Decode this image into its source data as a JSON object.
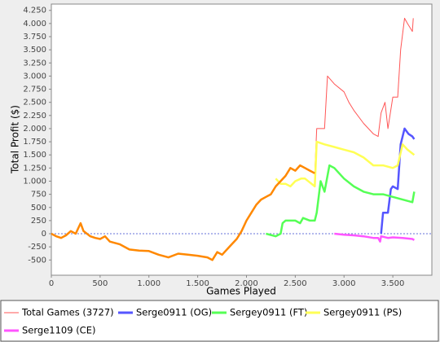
{
  "chart_data": {
    "type": "line",
    "x_label": "Games Played",
    "y_label": "Total Profit ($)",
    "xlim": [
      0,
      3900
    ],
    "ylim": [
      -790,
      4370
    ],
    "xticks": [
      0,
      500,
      {
        "value": 1000,
        "label": "1.000"
      },
      {
        "value": 1500,
        "label": "1.500"
      },
      {
        "value": 2000,
        "label": "2.000"
      },
      {
        "value": 2500,
        "label": "2.500"
      },
      {
        "value": 3000,
        "label": "3.000"
      },
      {
        "value": 3500,
        "label": "3.500"
      }
    ],
    "yticks": [
      -500,
      -250,
      0,
      250,
      500,
      750,
      {
        "value": 1000,
        "label": "1.000"
      },
      {
        "value": 1250,
        "label": "1.250"
      },
      {
        "value": 1500,
        "label": "1.500"
      },
      {
        "value": 1750,
        "label": "1.750"
      },
      {
        "value": 2000,
        "label": "2.000"
      },
      {
        "value": 2250,
        "label": "2.250"
      },
      {
        "value": 2500,
        "label": "2.500"
      },
      {
        "value": 2750,
        "label": "2.750"
      },
      {
        "value": 3000,
        "label": "3.000"
      },
      {
        "value": 3250,
        "label": "3.250"
      },
      {
        "value": 3500,
        "label": "3.500"
      },
      {
        "value": 3750,
        "label": "3.750"
      },
      {
        "value": 4000,
        "label": "4.000"
      },
      {
        "value": 4250,
        "label": "4.250"
      }
    ],
    "grid": false,
    "series": [
      {
        "name": "Total Games (3727)",
        "color": "#ff5555",
        "x": [
          0,
          50,
          100,
          150,
          200,
          250,
          300,
          330,
          400,
          450,
          500,
          550,
          600,
          700,
          800,
          900,
          1000,
          1100,
          1200,
          1300,
          1400,
          1500,
          1600,
          1650,
          1700,
          1750,
          1800,
          1850,
          1900,
          1950,
          2000,
          2050,
          2100,
          2150,
          2200,
          2250,
          2300,
          2350,
          2400,
          2450,
          2500,
          2550,
          2600,
          2650,
          2700,
          2720,
          2750,
          2800,
          2830,
          2900,
          3000,
          3050,
          3100,
          3200,
          3300,
          3350,
          3380,
          3420,
          3450,
          3500,
          3550,
          3580,
          3620,
          3650,
          3700,
          3710
        ],
        "values": [
          0,
          -50,
          -80,
          -30,
          50,
          0,
          200,
          50,
          -50,
          -80,
          -100,
          -50,
          -150,
          -200,
          -300,
          -320,
          -330,
          -400,
          -450,
          -380,
          -400,
          -420,
          -450,
          -500,
          -350,
          -400,
          -300,
          -200,
          -100,
          50,
          250,
          400,
          550,
          650,
          700,
          750,
          900,
          1000,
          1100,
          1250,
          1200,
          1300,
          1250,
          1200,
          1150,
          2000,
          2000,
          2000,
          3000,
          2850,
          2700,
          2500,
          2350,
          2100,
          1900,
          1850,
          2300,
          2500,
          2000,
          2600,
          2600,
          3500,
          4100,
          4000,
          3850,
          4100
        ]
      },
      {
        "name": "Serge0911 (OG)",
        "color": "#5555ff",
        "x": [
          3380,
          3400,
          3450,
          3480,
          3500,
          3550,
          3580,
          3620,
          3660,
          3700,
          3720
        ],
        "values": [
          0,
          400,
          400,
          850,
          900,
          850,
          1700,
          2000,
          1900,
          1850,
          1800
        ]
      },
      {
        "name": "Sergey0911 (FT)",
        "color": "#55ff55",
        "x": [
          2200,
          2300,
          2350,
          2370,
          2400,
          2500,
          2550,
          2580,
          2650,
          2700,
          2720,
          2760,
          2800,
          2850,
          2900,
          3000,
          3100,
          3200,
          3300,
          3400,
          3500,
          3600,
          3700,
          3720
        ],
        "values": [
          0,
          -50,
          0,
          200,
          250,
          250,
          200,
          300,
          250,
          250,
          400,
          1000,
          800,
          1300,
          1250,
          1050,
          900,
          800,
          750,
          750,
          700,
          650,
          600,
          800
        ]
      },
      {
        "name": "Sergey0911 (PS)",
        "color": "#ffff55",
        "x": [
          2300,
          2350,
          2400,
          2450,
          2500,
          2560,
          2600,
          2700,
          2720,
          2800,
          2900,
          3000,
          3100,
          3200,
          3300,
          3400,
          3500,
          3550,
          3600,
          3650,
          3720
        ],
        "values": [
          1050,
          950,
          950,
          900,
          1000,
          1050,
          1050,
          900,
          1750,
          1700,
          1650,
          1600,
          1550,
          1450,
          1300,
          1300,
          1250,
          1300,
          1700,
          1600,
          1500
        ]
      },
      {
        "color": "#ff8800",
        "x": [
          0,
          50,
          100,
          150,
          200,
          250,
          300,
          330,
          400,
          450,
          500,
          550,
          600,
          700,
          800,
          900,
          1000,
          1100,
          1200,
          1300,
          1400,
          1500,
          1600,
          1650,
          1700,
          1750,
          1800,
          1850,
          1900,
          1950,
          2000,
          2050,
          2100,
          2150,
          2200,
          2250,
          2300,
          2350,
          2400,
          2450,
          2500,
          2550,
          2600,
          2650,
          2700
        ],
        "values": [
          0,
          -50,
          -80,
          -30,
          50,
          0,
          200,
          50,
          -50,
          -80,
          -100,
          -50,
          -150,
          -200,
          -300,
          -320,
          -330,
          -400,
          -450,
          -380,
          -400,
          -420,
          -450,
          -500,
          -350,
          -400,
          -300,
          -200,
          -100,
          50,
          250,
          400,
          550,
          650,
          700,
          750,
          900,
          1000,
          1100,
          1250,
          1200,
          1300,
          1250,
          1200,
          1150
        ]
      },
      {
        "name": "Serge1109 (CE)",
        "color": "#ff55ff",
        "x": [
          2900,
          3000,
          3100,
          3200,
          3300,
          3350,
          3370,
          3380,
          3450,
          3500,
          3600,
          3700,
          3720
        ],
        "values": [
          0,
          -20,
          -30,
          -50,
          -80,
          -80,
          -150,
          -50,
          -80,
          -70,
          -80,
          -100,
          -120
        ]
      }
    ]
  }
}
